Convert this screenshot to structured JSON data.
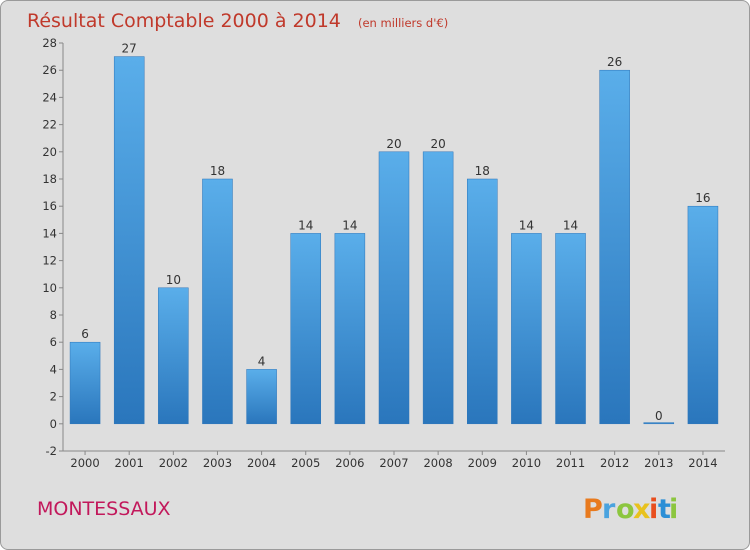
{
  "chart_data": {
    "type": "bar",
    "title": "Résultat Comptable 2000 à 2014",
    "subtitle": "(en milliers d'€)",
    "categories": [
      "2000",
      "2001",
      "2002",
      "2003",
      "2004",
      "2005",
      "2006",
      "2007",
      "2008",
      "2009",
      "2010",
      "2011",
      "2012",
      "2013",
      "2014"
    ],
    "values": [
      6,
      27,
      10,
      18,
      4,
      14,
      14,
      20,
      20,
      18,
      14,
      14,
      26,
      0,
      16
    ],
    "ylim": [
      -2,
      28
    ],
    "yticks": [
      -2,
      0,
      2,
      4,
      6,
      8,
      10,
      12,
      14,
      16,
      18,
      20,
      22,
      24,
      26,
      28
    ],
    "xlabel": "",
    "ylabel": "",
    "grid": false,
    "bar_color": "#3a8fd6",
    "bar_color_dark": "#2a73b8"
  },
  "footer": {
    "place_name": "MONTESSAUX",
    "logo": {
      "letters": [
        "P",
        "r",
        "o",
        "x",
        "i",
        "t",
        "i"
      ],
      "colors": [
        "#e87a1e",
        "#4aa3df",
        "#8cc63f",
        "#e8c21e",
        "#e84e1e",
        "#2b8fd6",
        "#8cc63f"
      ]
    }
  }
}
